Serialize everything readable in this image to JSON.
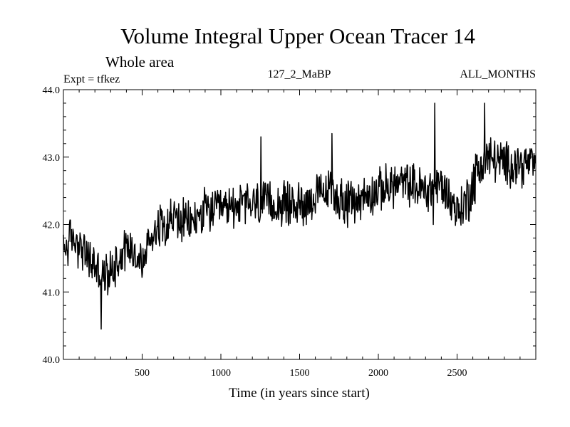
{
  "chart_data": {
    "type": "line",
    "title": "Volume Integral Upper Ocean Tracer 14",
    "subtitle": "Whole area",
    "experiment": "Expt = tfkez",
    "run_label": "127_2_MaBP",
    "months_label": "ALL_MONTHS",
    "xlabel": "Time (in years since start)",
    "ylabel": "",
    "xlim": [
      0,
      3000
    ],
    "ylim": [
      40.0,
      44.0
    ],
    "x_ticks": [
      500,
      1000,
      1500,
      2000,
      2500
    ],
    "x_tick_labels": [
      "500",
      "1000",
      "1500",
      "2000",
      "2500"
    ],
    "y_ticks": [
      40.0,
      41.0,
      42.0,
      43.0,
      44.0
    ],
    "y_tick_labels": [
      "40.0",
      "41.0",
      "42.0",
      "43.0",
      "44.0"
    ],
    "grid": false,
    "series": [
      {
        "color": "#000000",
        "x": [
          0,
          50,
          100,
          150,
          200,
          250,
          300,
          350,
          400,
          450,
          500,
          550,
          600,
          700,
          800,
          900,
          1000,
          1100,
          1200,
          1300,
          1400,
          1500,
          1600,
          1700,
          1800,
          1900,
          2000,
          2100,
          2200,
          2300,
          2400,
          2500,
          2550,
          2600,
          2650,
          2700,
          2800,
          2900,
          3000
        ],
        "y": [
          41.6,
          41.8,
          41.7,
          41.5,
          41.4,
          41.2,
          41.3,
          41.5,
          41.7,
          41.6,
          41.4,
          41.8,
          42.0,
          42.1,
          42.0,
          42.2,
          42.2,
          42.3,
          42.3,
          42.3,
          42.3,
          42.3,
          42.4,
          42.5,
          42.3,
          42.4,
          42.5,
          42.6,
          42.6,
          42.5,
          42.6,
          42.2,
          42.3,
          42.6,
          42.9,
          43.0,
          42.9,
          42.9,
          42.9
        ],
        "extremes": {
          "x": [
            240,
            1255,
            1705,
            2350,
            2360,
            2675
          ],
          "y": [
            40.45,
            43.3,
            43.35,
            42.0,
            43.8,
            43.8
          ]
        }
      }
    ]
  }
}
